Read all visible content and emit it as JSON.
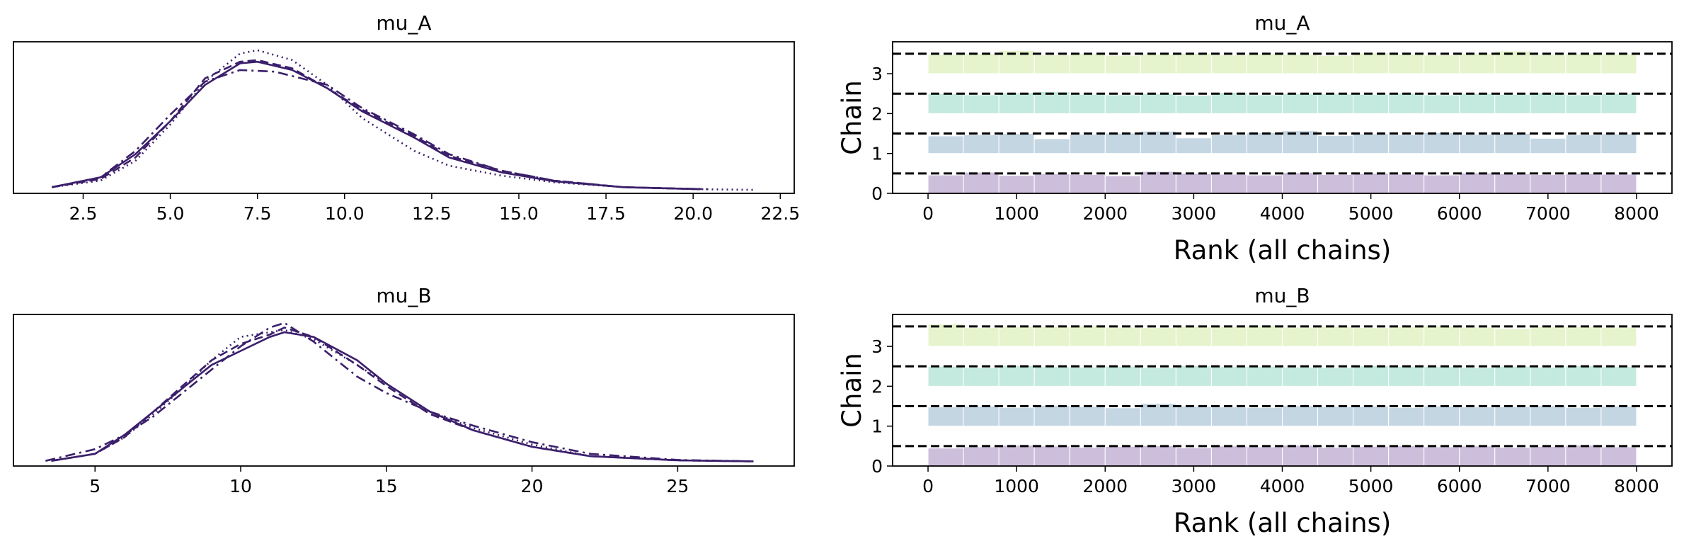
{
  "colors": {
    "kde_line": "#3b1f6b",
    "chain_colors": [
      "#cdbfdc",
      "#c5d6e3",
      "#c4eadf",
      "#e6f4cd"
    ],
    "ref_line": "#000000",
    "axes_frame": "#000000"
  },
  "chart_data": [
    {
      "type": "line",
      "title": "mu_A",
      "xlim": [
        0.5,
        22.9
      ],
      "xticks": [
        2.5,
        5.0,
        7.5,
        10.0,
        12.5,
        15.0,
        17.5,
        20.0,
        22.5
      ],
      "xtick_labels": [
        "2.5",
        "5.0",
        "7.5",
        "10.0",
        "12.5",
        "15.0",
        "17.5",
        "20.0",
        "22.5"
      ],
      "yticks_visible": false,
      "series": [
        {
          "linestyle": "solid",
          "x": [
            1.6,
            3,
            4,
            5,
            6,
            7,
            7.5,
            8.5,
            9.5,
            10.5,
            12,
            13,
            14.5,
            16,
            18,
            20.2
          ],
          "y": [
            0.01,
            0.04,
            0.11,
            0.21,
            0.32,
            0.385,
            0.39,
            0.365,
            0.31,
            0.24,
            0.16,
            0.1,
            0.055,
            0.028,
            0.01,
            0.004
          ]
        },
        {
          "linestyle": "dotted",
          "x": [
            1.6,
            3,
            4,
            5,
            6,
            7,
            7.5,
            8.5,
            9.5,
            10.5,
            12,
            13,
            14.5,
            16,
            18,
            20,
            21.8
          ],
          "y": [
            0.01,
            0.03,
            0.09,
            0.2,
            0.33,
            0.415,
            0.425,
            0.395,
            0.32,
            0.22,
            0.12,
            0.075,
            0.045,
            0.025,
            0.01,
            0.004,
            0.002
          ]
        },
        {
          "linestyle": "dashdot",
          "x": [
            1.6,
            3,
            4,
            5,
            6,
            7,
            8,
            9.5,
            10.5,
            12,
            13,
            14.5,
            16,
            18,
            20.4
          ],
          "y": [
            0.01,
            0.04,
            0.12,
            0.23,
            0.33,
            0.365,
            0.36,
            0.32,
            0.25,
            0.17,
            0.11,
            0.06,
            0.03,
            0.01,
            0.004
          ]
        },
        {
          "linestyle": "dashed",
          "x": [
            1.6,
            3,
            4,
            5,
            6,
            7,
            7.5,
            8.5,
            9.5,
            10.5,
            12,
            13,
            14.5,
            16,
            18,
            20.2
          ],
          "y": [
            0.01,
            0.035,
            0.1,
            0.21,
            0.34,
            0.39,
            0.395,
            0.37,
            0.31,
            0.245,
            0.165,
            0.105,
            0.06,
            0.03,
            0.01,
            0.004
          ]
        }
      ]
    },
    {
      "type": "bar",
      "title": "mu_A",
      "xlabel": "Rank (all chains)",
      "ylabel": "Chain",
      "xlim": [
        -400,
        8400
      ],
      "ylim": [
        0,
        3.8
      ],
      "xticks": [
        0,
        1000,
        2000,
        3000,
        4000,
        5000,
        6000,
        7000,
        8000
      ],
      "xtick_labels": [
        "0",
        "1000",
        "2000",
        "3000",
        "4000",
        "5000",
        "6000",
        "7000",
        "8000"
      ],
      "yticks": [
        0,
        1,
        2,
        3
      ],
      "ytick_labels": [
        "0",
        "1",
        "2",
        "3"
      ],
      "bin_width": 400,
      "ref_lines": [
        0.5,
        1.5,
        2.5,
        3.5
      ],
      "chains": [
        {
          "values": [
            0.46,
            0.53,
            0.45,
            0.49,
            0.47,
            0.44,
            0.55,
            0.5,
            0.48,
            0.46,
            0.52,
            0.47,
            0.5,
            0.48,
            0.46,
            0.51,
            0.49,
            0.47,
            0.5,
            0.48
          ]
        },
        {
          "values": [
            0.44,
            0.47,
            0.5,
            0.37,
            0.48,
            0.51,
            0.56,
            0.39,
            0.47,
            0.52,
            0.57,
            0.45,
            0.49,
            0.47,
            0.52,
            0.48,
            0.5,
            0.38,
            0.47,
            0.49
          ]
        },
        {
          "values": [
            0.5,
            0.47,
            0.52,
            0.55,
            0.48,
            0.47,
            0.5,
            0.46,
            0.53,
            0.47,
            0.5,
            0.49,
            0.48,
            0.51,
            0.47,
            0.5,
            0.48,
            0.52,
            0.47,
            0.5
          ]
        },
        {
          "values": [
            0.48,
            0.5,
            0.58,
            0.47,
            0.5,
            0.46,
            0.49,
            0.51,
            0.47,
            0.5,
            0.48,
            0.46,
            0.52,
            0.49,
            0.47,
            0.5,
            0.57,
            0.48,
            0.5,
            0.49
          ]
        }
      ]
    },
    {
      "type": "line",
      "title": "mu_B",
      "xlim": [
        2.2,
        29.0
      ],
      "xticks": [
        5,
        10,
        15,
        20,
        25
      ],
      "xtick_labels": [
        "5",
        "10",
        "15",
        "20",
        "25"
      ],
      "yticks_visible": false,
      "series": [
        {
          "linestyle": "solid",
          "x": [
            3.5,
            5,
            6,
            7,
            8,
            9,
            10,
            11,
            11.5,
            12.5,
            14,
            15,
            16.5,
            18,
            20,
            22,
            25,
            27.6
          ],
          "y": [
            0.005,
            0.02,
            0.06,
            0.11,
            0.16,
            0.21,
            0.24,
            0.27,
            0.28,
            0.27,
            0.22,
            0.17,
            0.11,
            0.07,
            0.035,
            0.015,
            0.006,
            0.004
          ]
        },
        {
          "linestyle": "dotted",
          "x": [
            3.5,
            5,
            6,
            7,
            8,
            9,
            10,
            11,
            11.5,
            12.5,
            14,
            15,
            16.5,
            18,
            20,
            22,
            25,
            27.6
          ],
          "y": [
            0.005,
            0.02,
            0.055,
            0.105,
            0.16,
            0.22,
            0.27,
            0.28,
            0.285,
            0.265,
            0.21,
            0.17,
            0.11,
            0.075,
            0.04,
            0.015,
            0.006,
            0.004
          ]
        },
        {
          "linestyle": "dashdot",
          "x": [
            3.3,
            5,
            6,
            7,
            8,
            9,
            10,
            11,
            11.5,
            12.5,
            14,
            15,
            16.5,
            18,
            20,
            22,
            25,
            27.5
          ],
          "y": [
            0.005,
            0.03,
            0.06,
            0.1,
            0.15,
            0.2,
            0.25,
            0.29,
            0.3,
            0.26,
            0.185,
            0.15,
            0.11,
            0.08,
            0.045,
            0.02,
            0.007,
            0.004
          ]
        },
        {
          "linestyle": "dashed",
          "x": [
            3.5,
            5,
            6,
            7,
            8,
            9,
            10,
            11,
            11.5,
            12.5,
            14,
            15,
            16.5,
            18,
            20,
            22,
            25,
            27.5
          ],
          "y": [
            0.005,
            0.02,
            0.055,
            0.11,
            0.165,
            0.22,
            0.255,
            0.275,
            0.29,
            0.27,
            0.21,
            0.165,
            0.105,
            0.07,
            0.035,
            0.015,
            0.006,
            0.004
          ]
        }
      ]
    },
    {
      "type": "bar",
      "title": "mu_B",
      "xlabel": "Rank (all chains)",
      "ylabel": "Chain",
      "xlim": [
        -400,
        8400
      ],
      "ylim": [
        0,
        3.8
      ],
      "xticks": [
        0,
        1000,
        2000,
        3000,
        4000,
        5000,
        6000,
        7000,
        8000
      ],
      "xtick_labels": [
        "0",
        "1000",
        "2000",
        "3000",
        "4000",
        "5000",
        "6000",
        "7000",
        "8000"
      ],
      "yticks": [
        0,
        1,
        2,
        3
      ],
      "ytick_labels": [
        "0",
        "1",
        "2",
        "3"
      ],
      "bin_width": 400,
      "ref_lines": [
        0.5,
        1.5,
        2.5,
        3.5
      ],
      "chains": [
        {
          "values": [
            0.45,
            0.48,
            0.52,
            0.5,
            0.47,
            0.49,
            0.51,
            0.46,
            0.5,
            0.48,
            0.52,
            0.47,
            0.49,
            0.51,
            0.48,
            0.5,
            0.47,
            0.49,
            0.52,
            0.48
          ]
        },
        {
          "values": [
            0.48,
            0.5,
            0.47,
            0.52,
            0.49,
            0.46,
            0.57,
            0.5,
            0.48,
            0.47,
            0.51,
            0.49,
            0.5,
            0.47,
            0.5,
            0.48,
            0.49,
            0.51,
            0.47,
            0.5
          ]
        },
        {
          "values": [
            0.5,
            0.47,
            0.52,
            0.49,
            0.48,
            0.5,
            0.47,
            0.51,
            0.49,
            0.5,
            0.48,
            0.47,
            0.51,
            0.5,
            0.49,
            0.47,
            0.5,
            0.48,
            0.51,
            0.49
          ]
        },
        {
          "values": [
            0.56,
            0.47,
            0.5,
            0.49,
            0.51,
            0.48,
            0.47,
            0.5,
            0.49,
            0.52,
            0.48,
            0.5,
            0.47,
            0.49,
            0.51,
            0.48,
            0.45,
            0.5,
            0.49,
            0.48
          ]
        }
      ]
    }
  ]
}
